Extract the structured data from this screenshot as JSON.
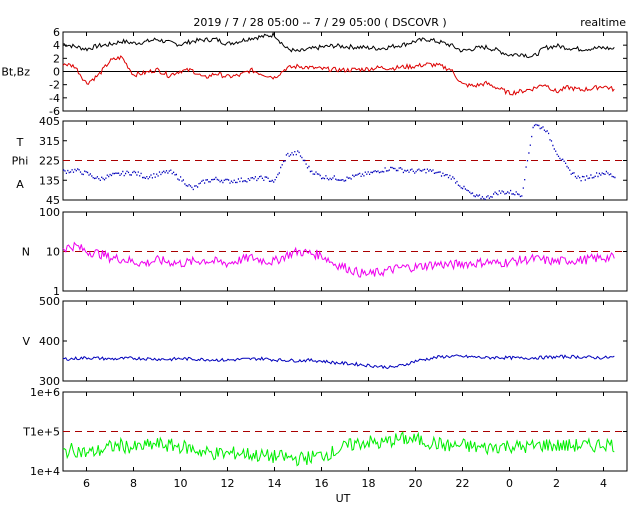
{
  "header": {
    "title": "2019 / 7 / 28   05:00 --  7 / 29   05:00  ( DSCOVR )",
    "mode": "realtime"
  },
  "chart_data": {
    "type": "line",
    "xlabel": "UT",
    "x_ticks": [
      "6",
      "8",
      "10",
      "12",
      "14",
      "16",
      "18",
      "20",
      "22",
      "0",
      "2",
      "4"
    ],
    "x_tick_hours": [
      6,
      8,
      10,
      12,
      14,
      16,
      18,
      20,
      22,
      24,
      26,
      28
    ],
    "xlim": [
      5,
      29
    ],
    "colors": {
      "bt": "#000000",
      "bz": "#dd0000",
      "phi": "#0000bb",
      "density": "#ee00ee",
      "speed": "#0000bb",
      "temperature": "#00ee00",
      "reference": "#aa0000"
    },
    "panels": [
      {
        "key": "bfield",
        "ylabel": "Bt,Bz",
        "ylim": [
          -6,
          6
        ],
        "y_ticks": [
          "6",
          "4",
          "2",
          "0",
          "-2",
          "-4",
          "-6"
        ],
        "zero_line": true,
        "series": [
          {
            "x": [
              5,
              5.5,
              6,
              6.5,
              7,
              7.5,
              8,
              8.5,
              9,
              9.5,
              10,
              10.5,
              11,
              11.5,
              12,
              12.5,
              13,
              13.5,
              14,
              14.5,
              15,
              15.5,
              16,
              16.5,
              17,
              17.5,
              18,
              18.5,
              19,
              19.5,
              20,
              20.5,
              21,
              21.5,
              22,
              22.5,
              23,
              23.5,
              24,
              24.5,
              25,
              25.5,
              26,
              26.5,
              27,
              27.5,
              28,
              28.5
            ],
            "values": [
              4.2,
              3.8,
              3.4,
              3.9,
              4.1,
              4.6,
              4.3,
              4.5,
              4.9,
              4.4,
              4.1,
              4.6,
              4.8,
              4.9,
              4.2,
              4.6,
              5.1,
              5.3,
              5.6,
              3.5,
              3.0,
              3.4,
              3.7,
              3.9,
              3.8,
              3.7,
              3.6,
              3.5,
              3.8,
              4.1,
              4.6,
              4.9,
              4.5,
              4.0,
              3.1,
              3.5,
              3.7,
              3.2,
              2.5,
              2.7,
              2.2,
              3.6,
              3.9,
              3.6,
              3.4,
              3.5,
              3.6,
              3.4
            ]
          },
          {
            "x": [
              5,
              5.5,
              6,
              6.5,
              7,
              7.5,
              8,
              8.5,
              9,
              9.5,
              10,
              10.5,
              11,
              11.5,
              12,
              12.5,
              13,
              13.5,
              14,
              14.5,
              15,
              15.5,
              16,
              16.5,
              17,
              17.5,
              18,
              18.5,
              19,
              19.5,
              20,
              20.5,
              21,
              21.5,
              22,
              22.5,
              23,
              23.5,
              24,
              24.5,
              25,
              25.5,
              26,
              26.5,
              27,
              27.5,
              28,
              28.5
            ],
            "values": [
              1.2,
              0.8,
              -1.8,
              -0.6,
              1.6,
              2.2,
              -0.5,
              -0.2,
              0.3,
              -0.6,
              0.1,
              0.2,
              -1.0,
              -0.3,
              -0.8,
              -0.6,
              0.2,
              -0.4,
              -0.9,
              0.5,
              0.8,
              0.6,
              0.4,
              0.3,
              0.2,
              0.3,
              0.4,
              0.6,
              0.5,
              0.7,
              0.8,
              1.1,
              0.9,
              0.3,
              -2.0,
              -2.2,
              -1.8,
              -2.5,
              -3.3,
              -3.0,
              -2.6,
              -1.9,
              -3.1,
              -2.4,
              -2.8,
              -2.6,
              -2.2,
              -2.8
            ]
          }
        ]
      },
      {
        "key": "phi",
        "labels": [
          "T",
          "Phi",
          "A"
        ],
        "ylim": [
          45,
          405
        ],
        "y_ticks": [
          "405",
          "315",
          "225",
          "135",
          "45"
        ],
        "reference": 225,
        "series": [
          {
            "x": [
              5,
              5.5,
              6,
              6.5,
              7,
              7.5,
              8,
              8.5,
              9,
              9.5,
              10,
              10.5,
              11,
              11.5,
              12,
              12.5,
              13,
              13.5,
              14,
              14.5,
              15,
              15.5,
              16,
              16.5,
              17,
              17.5,
              18,
              18.5,
              19,
              19.5,
              20,
              20.5,
              21,
              21.5,
              22,
              22.5,
              23,
              23.5,
              24,
              24.5,
              25,
              25.5,
              26,
              26.5,
              27,
              27.5,
              28,
              28.5
            ],
            "values": [
              175,
              180,
              165,
              140,
              155,
              165,
              170,
              150,
              160,
              175,
              140,
              95,
              130,
              140,
              130,
              135,
              140,
              145,
              130,
              250,
              260,
              180,
              150,
              145,
              140,
              155,
              165,
              180,
              190,
              180,
              175,
              180,
              165,
              150,
              100,
              60,
              55,
              80,
              80,
              70,
              390,
              370,
              260,
              180,
              140,
              155,
              170,
              150
            ]
          }
        ]
      },
      {
        "key": "density",
        "ylabel": "N",
        "scale": "log",
        "ylim": [
          1,
          100
        ],
        "y_ticks": [
          "100",
          "10",
          "1"
        ],
        "reference": 10,
        "series": [
          {
            "x": [
              5,
              5.5,
              6,
              6.5,
              7,
              7.5,
              8,
              8.5,
              9,
              9.5,
              10,
              10.5,
              11,
              11.5,
              12,
              12.5,
              13,
              13.5,
              14,
              14.5,
              15,
              15.5,
              16,
              16.5,
              17,
              17.5,
              18,
              18.5,
              19,
              19.5,
              20,
              20.5,
              21,
              21.5,
              22,
              22.5,
              23,
              23.5,
              24,
              24.5,
              25,
              25.5,
              26,
              26.5,
              27,
              27.5,
              28,
              28.5
            ],
            "values": [
              12,
              14,
              10,
              9,
              7,
              6.5,
              5.5,
              5,
              6,
              5.5,
              5,
              5.5,
              6,
              5.5,
              5,
              6,
              7,
              6,
              5.5,
              8,
              10,
              9,
              8,
              5,
              4,
              3,
              2.6,
              3,
              3.5,
              4,
              4,
              4.5,
              4.8,
              4.5,
              5,
              5,
              5.5,
              5,
              5.5,
              6,
              6.5,
              6,
              5.5,
              6,
              6,
              6.5,
              7,
              7
            ]
          }
        ]
      },
      {
        "key": "speed",
        "ylabel": "V",
        "ylim": [
          300,
          500
        ],
        "y_ticks": [
          "500",
          "400",
          "300"
        ],
        "series": [
          {
            "x": [
              5,
              5.5,
              6,
              6.5,
              7,
              7.5,
              8,
              8.5,
              9,
              9.5,
              10,
              10.5,
              11,
              11.5,
              12,
              12.5,
              13,
              13.5,
              14,
              14.5,
              15,
              15.5,
              16,
              16.5,
              17,
              17.5,
              18,
              18.5,
              19,
              19.5,
              20,
              20.5,
              21,
              21.5,
              22,
              22.5,
              23,
              23.5,
              24,
              24.5,
              25,
              25.5,
              26,
              26.5,
              27,
              27.5,
              28,
              28.5
            ],
            "values": [
              355,
              356,
              358,
              357,
              355,
              356,
              357,
              356,
              355,
              354,
              356,
              355,
              354,
              353,
              352,
              354,
              355,
              356,
              353,
              352,
              351,
              352,
              350,
              346,
              344,
              342,
              339,
              336,
              334,
              340,
              350,
              355,
              360,
              362,
              361,
              360,
              358,
              359,
              358,
              357,
              358,
              359,
              360,
              361,
              360,
              359,
              358,
              360
            ]
          }
        ]
      },
      {
        "key": "temperature",
        "ylabel": "T",
        "scale": "log",
        "ylim": [
          10000,
          1000000
        ],
        "y_ticks": [
          "1e+6",
          "1e+5",
          "1e+4"
        ],
        "reference": 100000,
        "series": [
          {
            "x": [
              5,
              5.5,
              6,
              6.5,
              7,
              7.5,
              8,
              8.5,
              9,
              9.5,
              10,
              10.5,
              11,
              11.5,
              12,
              12.5,
              13,
              13.5,
              14,
              14.5,
              15,
              15.5,
              16,
              16.5,
              17,
              17.5,
              18,
              18.5,
              19,
              19.5,
              20,
              20.5,
              21,
              21.5,
              22,
              22.5,
              23,
              23.5,
              24,
              24.5,
              25,
              25.5,
              26,
              26.5,
              27,
              27.5,
              28,
              28.5
            ],
            "values": [
              30000,
              35000,
              28000,
              32000,
              40000,
              45000,
              38000,
              42000,
              48000,
              44000,
              42000,
              36000,
              30000,
              28000,
              27000,
              29000,
              26000,
              24000,
              23000,
              22000,
              20000,
              22000,
              25000,
              30000,
              40000,
              50000,
              55000,
              48000,
              60000,
              65000,
              62000,
              55000,
              48000,
              42000,
              45000,
              40000,
              38000,
              42000,
              44000,
              40000,
              42000,
              46000,
              44000,
              43000,
              45000,
              42000,
              50000,
              45000
            ]
          }
        ]
      }
    ]
  }
}
